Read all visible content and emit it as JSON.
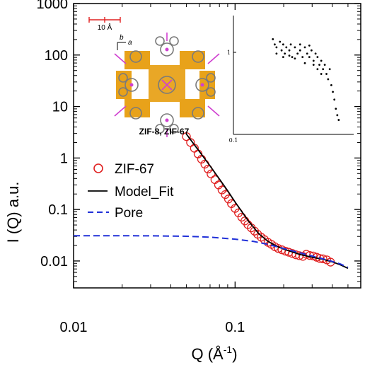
{
  "chart_data": {
    "type": "scatter",
    "xlabel_main": "Q (",
    "xlabel_unit": "Å",
    "xlabel_exp": "-1",
    "xlabel_close": ")",
    "ylabel": "I (Q) a.u.",
    "xscale": "log",
    "yscale": "log",
    "xlim": [
      0.01,
      0.6
    ],
    "ylim": [
      0.003,
      1000
    ],
    "x_ticks": [
      {
        "value": 0.01,
        "label": "0.01"
      },
      {
        "value": 0.1,
        "label": "0.1"
      }
    ],
    "y_ticks": [
      {
        "value": 1000,
        "label": "1000"
      },
      {
        "value": 100,
        "label": "100"
      },
      {
        "value": 10,
        "label": "10"
      },
      {
        "value": 1,
        "label": "1"
      },
      {
        "value": 0.1,
        "label": "0.1"
      },
      {
        "value": 0.01,
        "label": "0.01"
      }
    ],
    "legend_position": "middle-left",
    "series": [
      {
        "name": "ZIF-67",
        "style": "open-circle",
        "color": "#e02020",
        "x": [
          0.05,
          0.053,
          0.056,
          0.059,
          0.062,
          0.065,
          0.068,
          0.071,
          0.075,
          0.079,
          0.083,
          0.087,
          0.091,
          0.095,
          0.1,
          0.105,
          0.11,
          0.115,
          0.12,
          0.126,
          0.132,
          0.138,
          0.145,
          0.152,
          0.16,
          0.168,
          0.176,
          0.185,
          0.195,
          0.205,
          0.215,
          0.226,
          0.238,
          0.25,
          0.263,
          0.276,
          0.29,
          0.305,
          0.32,
          0.335,
          0.35,
          0.37,
          0.39
        ],
        "y": [
          2.6,
          2.0,
          1.55,
          1.2,
          0.95,
          0.76,
          0.61,
          0.49,
          0.38,
          0.3,
          0.24,
          0.195,
          0.16,
          0.13,
          0.105,
          0.086,
          0.071,
          0.06,
          0.051,
          0.044,
          0.038,
          0.033,
          0.029,
          0.026,
          0.023,
          0.021,
          0.019,
          0.0175,
          0.0165,
          0.0155,
          0.0148,
          0.014,
          0.0132,
          0.0127,
          0.0123,
          0.0135,
          0.0128,
          0.0125,
          0.0118,
          0.0112,
          0.011,
          0.0105,
          0.0095
        ]
      },
      {
        "name": "Model_Fit",
        "style": "solid-line",
        "color": "#000000",
        "x": [
          0.05,
          0.06,
          0.07,
          0.08,
          0.09,
          0.1,
          0.12,
          0.14,
          0.16,
          0.18,
          0.2,
          0.25,
          0.3,
          0.35,
          0.4,
          0.45,
          0.5
        ],
        "y": [
          2.9,
          1.35,
          0.7,
          0.39,
          0.23,
          0.14,
          0.062,
          0.034,
          0.024,
          0.0195,
          0.017,
          0.0135,
          0.0118,
          0.0108,
          0.0096,
          0.0084,
          0.0072
        ]
      },
      {
        "name": "Pore",
        "style": "dashed-line",
        "color": "#2030d8",
        "x": [
          0.01,
          0.02,
          0.03,
          0.05,
          0.07,
          0.1,
          0.13,
          0.16,
          0.2,
          0.25,
          0.3,
          0.35,
          0.4,
          0.45,
          0.5
        ],
        "y": [
          0.031,
          0.031,
          0.0308,
          0.0302,
          0.029,
          0.0265,
          0.024,
          0.021,
          0.0175,
          0.0145,
          0.0125,
          0.011,
          0.0098,
          0.0087,
          0.0075
        ]
      }
    ],
    "inset": {
      "type": "scatter",
      "xscale": "log",
      "yscale": "log",
      "x_tick_label": "0.1",
      "y_tick_label": "1",
      "x": [
        0.18,
        0.185,
        0.19,
        0.2,
        0.205,
        0.21,
        0.215,
        0.22,
        0.23,
        0.235,
        0.24,
        0.25,
        0.26,
        0.27,
        0.28,
        0.29,
        0.3,
        0.31,
        0.32,
        0.33,
        0.34,
        0.35,
        0.36,
        0.37,
        0.38,
        0.39,
        0.4,
        0.41,
        0.42,
        0.43,
        0.44,
        0.45,
        0.46,
        0.47,
        0.48,
        0.19,
        0.21,
        0.23,
        0.25,
        0.27,
        0.29,
        0.31,
        0.33,
        0.35,
        0.37
      ],
      "y": [
        1.0,
        0.9,
        0.85,
        0.95,
        0.8,
        0.9,
        0.75,
        0.85,
        0.8,
        0.9,
        0.7,
        0.85,
        0.75,
        0.8,
        0.7,
        0.85,
        0.75,
        0.7,
        0.8,
        0.65,
        0.75,
        0.7,
        0.6,
        0.65,
        0.55,
        0.6,
        0.5,
        0.45,
        0.55,
        0.4,
        0.35,
        0.3,
        0.25,
        0.22,
        0.2,
        0.75,
        0.7,
        0.72,
        0.68,
        0.9,
        0.62,
        0.88,
        0.6,
        0.55,
        0.5
      ]
    }
  },
  "legend": {
    "zif67": "ZIF-67",
    "model_fit": "Model_Fit",
    "pore": "Pore"
  },
  "structure_image": {
    "caption": "ZIF-8, ZIF-67",
    "scale_label": "10 Å",
    "axis_a": "a",
    "axis_b": "b",
    "colors": {
      "cage": "#e8a21a",
      "linker": "#7a7a7a",
      "metal": "#d040d0"
    }
  }
}
